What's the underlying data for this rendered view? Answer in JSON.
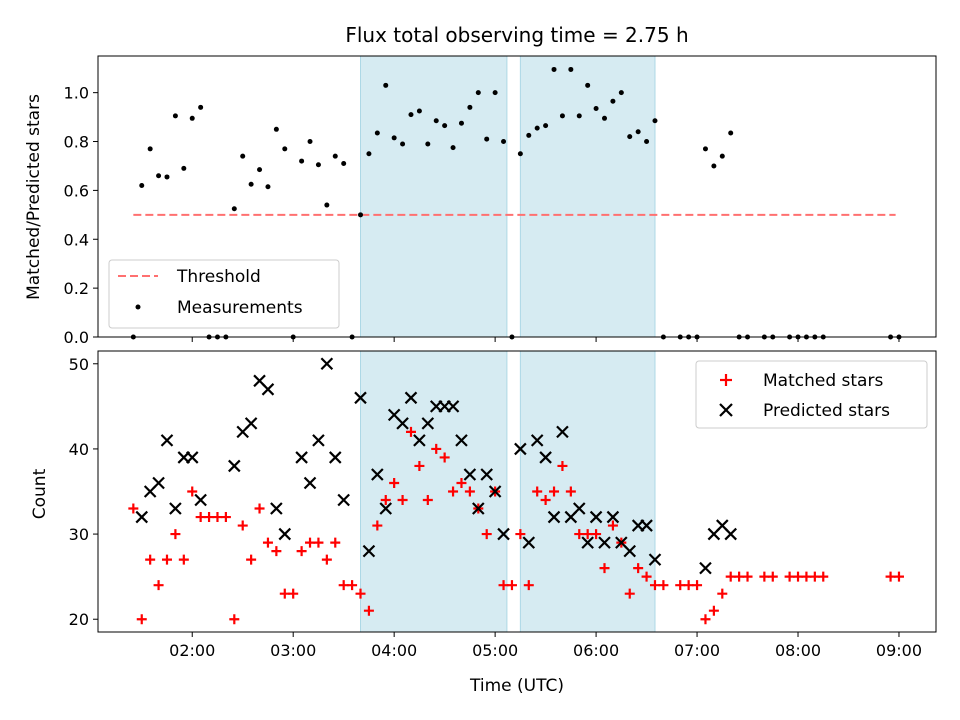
{
  "chart_data": [
    {
      "type": "scatter",
      "title": "Flux total observing time = 2.75 h",
      "xlabel": "",
      "ylabel": "Matched/Predicted stars",
      "ylim": [
        0,
        1.15
      ],
      "yticks": [
        "0.0",
        "0.2",
        "0.4",
        "0.6",
        "0.8",
        "1.0"
      ],
      "threshold": {
        "name": "Threshold",
        "value": 0.5,
        "x_range": [
          "01:25",
          "08:58"
        ],
        "color": "#ff7070"
      },
      "legend": {
        "position": "lower-left",
        "entries": [
          "Threshold",
          "Measurements"
        ]
      },
      "series": [
        {
          "name": "Measurements",
          "color": "#000000",
          "points": [
            [
              "01:25",
              0.0
            ],
            [
              "01:30",
              0.62
            ],
            [
              "01:35",
              0.77
            ],
            [
              "01:40",
              0.66
            ],
            [
              "01:45",
              0.655
            ],
            [
              "01:50",
              0.905
            ],
            [
              "01:55",
              0.69
            ],
            [
              "02:00",
              0.895
            ],
            [
              "02:05",
              0.94
            ],
            [
              "02:10",
              0.0
            ],
            [
              "02:15",
              0.0
            ],
            [
              "02:20",
              0.0
            ],
            [
              "02:25",
              0.525
            ],
            [
              "02:30",
              0.74
            ],
            [
              "02:35",
              0.625
            ],
            [
              "02:40",
              0.685
            ],
            [
              "02:45",
              0.615
            ],
            [
              "02:50",
              0.85
            ],
            [
              "02:55",
              0.77
            ],
            [
              "03:00",
              0.0
            ],
            [
              "03:05",
              0.72
            ],
            [
              "03:10",
              0.8
            ],
            [
              "03:15",
              0.705
            ],
            [
              "03:20",
              0.54
            ],
            [
              "03:25",
              0.74
            ],
            [
              "03:30",
              0.71
            ],
            [
              "03:35",
              0.0
            ],
            [
              "03:40",
              0.5
            ],
            [
              "03:45",
              0.75
            ],
            [
              "03:50",
              0.835
            ],
            [
              "03:55",
              1.03
            ],
            [
              "04:00",
              0.815
            ],
            [
              "04:05",
              0.79
            ],
            [
              "04:10",
              0.91
            ],
            [
              "04:15",
              0.925
            ],
            [
              "04:20",
              0.79
            ],
            [
              "04:25",
              0.885
            ],
            [
              "04:30",
              0.865
            ],
            [
              "04:35",
              0.775
            ],
            [
              "04:40",
              0.875
            ],
            [
              "04:45",
              0.94
            ],
            [
              "04:50",
              1.0
            ],
            [
              "04:55",
              0.81
            ],
            [
              "05:00",
              1.0
            ],
            [
              "05:05",
              0.8
            ],
            [
              "05:10",
              0.0
            ],
            [
              "05:15",
              0.75
            ],
            [
              "05:20",
              0.825
            ],
            [
              "05:25",
              0.855
            ],
            [
              "05:30",
              0.865
            ],
            [
              "05:35",
              1.095
            ],
            [
              "05:40",
              0.905
            ],
            [
              "05:45",
              1.095
            ],
            [
              "05:50",
              0.905
            ],
            [
              "05:55",
              1.03
            ],
            [
              "06:00",
              0.935
            ],
            [
              "06:05",
              0.895
            ],
            [
              "06:10",
              0.965
            ],
            [
              "06:15",
              1.0
            ],
            [
              "06:20",
              0.82
            ],
            [
              "06:25",
              0.84
            ],
            [
              "06:30",
              0.8
            ],
            [
              "06:35",
              0.885
            ],
            [
              "06:40",
              0.0
            ],
            [
              "06:50",
              0.0
            ],
            [
              "06:55",
              0.0
            ],
            [
              "07:00",
              0.0
            ],
            [
              "07:05",
              0.77
            ],
            [
              "07:10",
              0.7
            ],
            [
              "07:15",
              0.74
            ],
            [
              "07:20",
              0.835
            ],
            [
              "07:25",
              0.0
            ],
            [
              "07:30",
              0.0
            ],
            [
              "07:40",
              0.0
            ],
            [
              "07:45",
              0.0
            ],
            [
              "07:55",
              0.0
            ],
            [
              "08:00",
              0.0
            ],
            [
              "08:05",
              0.0
            ],
            [
              "08:10",
              0.0
            ],
            [
              "08:15",
              0.0
            ],
            [
              "08:55",
              0.0
            ],
            [
              "09:00",
              0.0
            ]
          ]
        }
      ]
    },
    {
      "type": "scatter",
      "title": "",
      "xlabel": "Time (UTC)",
      "ylabel": "Count",
      "ylim": [
        18.5,
        51.5
      ],
      "yticks": [
        "20",
        "30",
        "40",
        "50"
      ],
      "xticks": [
        "02:00",
        "03:00",
        "04:00",
        "05:00",
        "06:00",
        "07:00",
        "08:00",
        "09:00"
      ],
      "legend": {
        "position": "top-right",
        "entries": [
          "Matched stars",
          "Predicted stars"
        ]
      },
      "series": [
        {
          "name": "Matched stars",
          "color": "#ff0000",
          "marker": "plus",
          "points": [
            [
              "01:25",
              33
            ],
            [
              "01:30",
              20
            ],
            [
              "01:35",
              27
            ],
            [
              "01:40",
              24
            ],
            [
              "01:45",
              27
            ],
            [
              "01:50",
              30
            ],
            [
              "01:55",
              27
            ],
            [
              "02:00",
              35
            ],
            [
              "02:05",
              32
            ],
            [
              "02:10",
              32
            ],
            [
              "02:15",
              32
            ],
            [
              "02:20",
              32
            ],
            [
              "02:25",
              20
            ],
            [
              "02:30",
              31
            ],
            [
              "02:35",
              27
            ],
            [
              "02:40",
              33
            ],
            [
              "02:45",
              29
            ],
            [
              "02:50",
              28
            ],
            [
              "02:55",
              23
            ],
            [
              "03:00",
              23
            ],
            [
              "03:05",
              28
            ],
            [
              "03:10",
              29
            ],
            [
              "03:15",
              29
            ],
            [
              "03:20",
              27
            ],
            [
              "03:25",
              29
            ],
            [
              "03:30",
              24
            ],
            [
              "03:35",
              24
            ],
            [
              "03:40",
              23
            ],
            [
              "03:45",
              21
            ],
            [
              "03:50",
              31
            ],
            [
              "03:55",
              34
            ],
            [
              "04:00",
              36
            ],
            [
              "04:05",
              34
            ],
            [
              "04:10",
              42
            ],
            [
              "04:15",
              38
            ],
            [
              "04:20",
              34
            ],
            [
              "04:25",
              40
            ],
            [
              "04:30",
              39
            ],
            [
              "04:35",
              35
            ],
            [
              "04:40",
              36
            ],
            [
              "04:45",
              35
            ],
            [
              "04:50",
              33
            ],
            [
              "04:55",
              30
            ],
            [
              "05:00",
              35
            ],
            [
              "05:05",
              24
            ],
            [
              "05:10",
              24
            ],
            [
              "05:15",
              30
            ],
            [
              "05:20",
              24
            ],
            [
              "05:25",
              35
            ],
            [
              "05:30",
              34
            ],
            [
              "05:35",
              35
            ],
            [
              "05:40",
              38
            ],
            [
              "05:45",
              35
            ],
            [
              "05:50",
              30
            ],
            [
              "05:55",
              30
            ],
            [
              "06:00",
              30
            ],
            [
              "06:05",
              26
            ],
            [
              "06:10",
              31
            ],
            [
              "06:15",
              29
            ],
            [
              "06:20",
              23
            ],
            [
              "06:25",
              26
            ],
            [
              "06:30",
              25
            ],
            [
              "06:35",
              24
            ],
            [
              "06:40",
              24
            ],
            [
              "06:50",
              24
            ],
            [
              "06:55",
              24
            ],
            [
              "07:00",
              24
            ],
            [
              "07:05",
              20
            ],
            [
              "07:10",
              21
            ],
            [
              "07:15",
              23
            ],
            [
              "07:20",
              25
            ],
            [
              "07:25",
              25
            ],
            [
              "07:30",
              25
            ],
            [
              "07:40",
              25
            ],
            [
              "07:45",
              25
            ],
            [
              "07:55",
              25
            ],
            [
              "08:00",
              25
            ],
            [
              "08:05",
              25
            ],
            [
              "08:10",
              25
            ],
            [
              "08:15",
              25
            ],
            [
              "08:55",
              25
            ],
            [
              "09:00",
              25
            ]
          ]
        },
        {
          "name": "Predicted stars",
          "color": "#000000",
          "marker": "x",
          "points": [
            [
              "01:30",
              32
            ],
            [
              "01:35",
              35
            ],
            [
              "01:40",
              36
            ],
            [
              "01:45",
              41
            ],
            [
              "01:50",
              33
            ],
            [
              "01:55",
              39
            ],
            [
              "02:00",
              39
            ],
            [
              "02:05",
              34
            ],
            [
              "02:25",
              38
            ],
            [
              "02:30",
              42
            ],
            [
              "02:35",
              43
            ],
            [
              "02:40",
              48
            ],
            [
              "02:45",
              47
            ],
            [
              "02:50",
              33
            ],
            [
              "02:55",
              30
            ],
            [
              "03:05",
              39
            ],
            [
              "03:10",
              36
            ],
            [
              "03:15",
              41
            ],
            [
              "03:20",
              50
            ],
            [
              "03:25",
              39
            ],
            [
              "03:30",
              34
            ],
            [
              "03:40",
              46
            ],
            [
              "03:45",
              28
            ],
            [
              "03:50",
              37
            ],
            [
              "03:55",
              33
            ],
            [
              "04:00",
              44
            ],
            [
              "04:05",
              43
            ],
            [
              "04:10",
              46
            ],
            [
              "04:15",
              41
            ],
            [
              "04:20",
              43
            ],
            [
              "04:25",
              45
            ],
            [
              "04:30",
              45
            ],
            [
              "04:35",
              45
            ],
            [
              "04:40",
              41
            ],
            [
              "04:45",
              37
            ],
            [
              "04:50",
              33
            ],
            [
              "04:55",
              37
            ],
            [
              "05:00",
              35
            ],
            [
              "05:05",
              30
            ],
            [
              "05:15",
              40
            ],
            [
              "05:20",
              29
            ],
            [
              "05:25",
              41
            ],
            [
              "05:30",
              39
            ],
            [
              "05:35",
              32
            ],
            [
              "05:40",
              42
            ],
            [
              "05:45",
              32
            ],
            [
              "05:50",
              33
            ],
            [
              "05:55",
              29
            ],
            [
              "06:00",
              32
            ],
            [
              "06:05",
              29
            ],
            [
              "06:10",
              32
            ],
            [
              "06:15",
              29
            ],
            [
              "06:20",
              28
            ],
            [
              "06:25",
              31
            ],
            [
              "06:30",
              31
            ],
            [
              "06:35",
              27
            ],
            [
              "07:05",
              26
            ],
            [
              "07:10",
              30
            ],
            [
              "07:15",
              31
            ],
            [
              "07:20",
              30
            ]
          ]
        }
      ]
    }
  ],
  "shaded_intervals": {
    "color": "#add8e6",
    "ranges": [
      [
        "03:40",
        "05:07"
      ],
      [
        "05:15",
        "06:35"
      ]
    ]
  },
  "x_axis": {
    "min": "01:04",
    "max": "09:22"
  }
}
